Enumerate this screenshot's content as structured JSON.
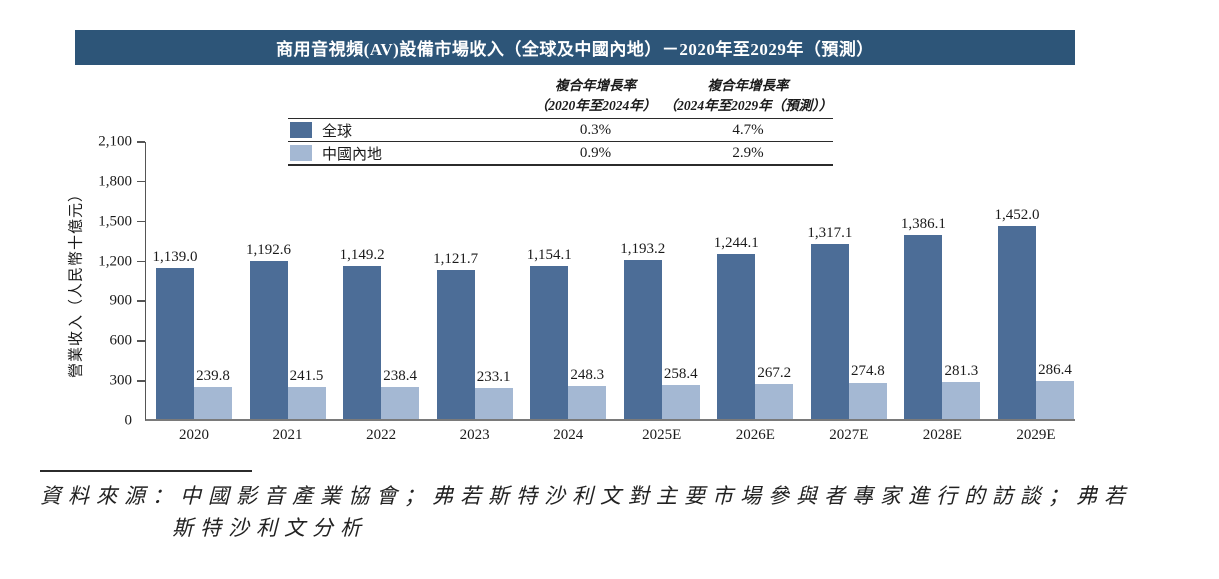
{
  "title": "商用音視頻(AV)設備市場收入（全球及中國內地）－2020年至2029年（預測）",
  "colors": {
    "banner": "#2D5578",
    "global_bar": "#4C6D97",
    "china_bar": "#A4B8D3",
    "axis": "#555555",
    "baseline": "#7a7a7a"
  },
  "legend_table": {
    "col_headers": [
      {
        "line1": "複合年增長率",
        "line2": "（2020年至2024年）"
      },
      {
        "line1": "複合年增長率",
        "line2": "（2024年至2029年（預測））"
      }
    ],
    "rows": [
      {
        "label": "全球",
        "values": [
          "0.3%",
          "4.7%"
        ]
      },
      {
        "label": "中國內地",
        "values": [
          "0.9%",
          "2.9%"
        ]
      }
    ]
  },
  "chart_data": {
    "type": "bar",
    "title": "商用音視頻(AV)設備市場收入（全球及中國內地）－2020年至2029年（預測）",
    "categories": [
      "2020",
      "2021",
      "2022",
      "2023",
      "2024",
      "2025E",
      "2026E",
      "2027E",
      "2028E",
      "2029E"
    ],
    "series": [
      {
        "name": "全球",
        "color": "#4C6D97",
        "values": [
          1139.0,
          1192.6,
          1149.2,
          1121.7,
          1154.1,
          1193.2,
          1244.1,
          1317.1,
          1386.1,
          1452.0
        ],
        "labels": [
          "1,139.0",
          "1,192.6",
          "1,149.2",
          "1,121.7",
          "1,154.1",
          "1,193.2",
          "1,244.1",
          "1,317.1",
          "1,386.1",
          "1,452.0"
        ],
        "cagr_2020_2024": "0.3%",
        "cagr_2024_2029": "4.7%"
      },
      {
        "name": "中國內地",
        "color": "#A4B8D3",
        "values": [
          239.8,
          241.5,
          238.4,
          233.1,
          248.3,
          258.4,
          267.2,
          274.8,
          281.3,
          286.4
        ],
        "labels": [
          "239.8",
          "241.5",
          "238.4",
          "233.1",
          "248.3",
          "258.4",
          "267.2",
          "274.8",
          "281.3",
          "286.4"
        ],
        "cagr_2020_2024": "0.9%",
        "cagr_2024_2029": "2.9%"
      }
    ],
    "xlabel": "",
    "ylabel": "營業收入（人民幣十億元）",
    "ylim": [
      0,
      2100
    ],
    "ytick_step": 300,
    "yticks": [
      "0",
      "300",
      "600",
      "900",
      "1,200",
      "1,500",
      "1,800",
      "2,100"
    ],
    "grid": false,
    "legend_position": "top-table",
    "value_labels_shown": true
  },
  "source_note": {
    "line1": "資料來源：中國影音產業協會；弗若斯特沙利文對主要市場參與者專家進行的訪談；弗若",
    "line2": "斯特沙利文分析"
  }
}
